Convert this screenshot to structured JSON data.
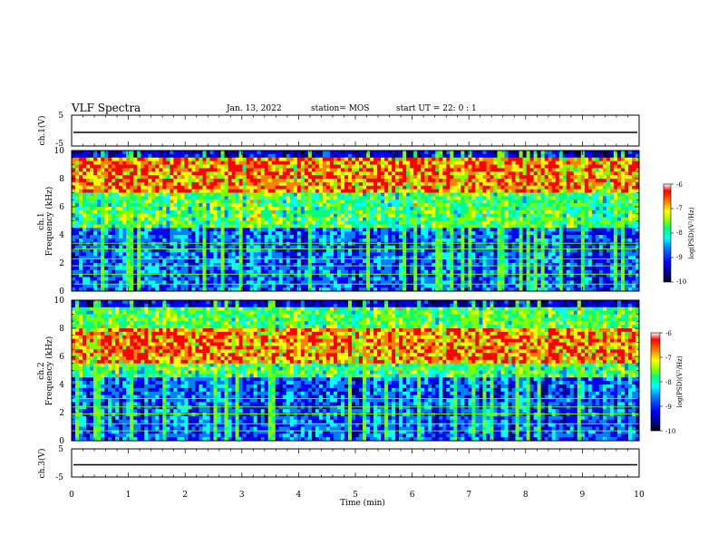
{
  "header": {
    "title": "VLF Spectra",
    "date": "Jan. 13, 2022",
    "station": "station= MOS",
    "start": "start UT =  22: 0  : 1"
  },
  "colors": {
    "scale": [
      "#000000",
      "#00007f",
      "#0000ff",
      "#0080ff",
      "#00ffff",
      "#00ff7f",
      "#7fff00",
      "#ffff00",
      "#ff8000",
      "#ff0000",
      "#ffffff"
    ]
  },
  "chart_data": [
    {
      "type": "line",
      "name": "ch1-waveform",
      "ylabel": "ch.1(V)",
      "ylim": [
        -5,
        5
      ],
      "yticks": [
        "5",
        "-5"
      ],
      "x": [
        0,
        10
      ],
      "values": [
        0,
        0
      ]
    },
    {
      "type": "heatmap",
      "name": "ch1-spectrogram",
      "ylabel_top": "ch.1",
      "ylabel": "Frequency (kHz)",
      "ylim": [
        0,
        10
      ],
      "yticks": [
        "0",
        "2",
        "4",
        "6",
        "8",
        "10"
      ],
      "xlim": [
        0,
        10
      ],
      "colorbar": {
        "label": "log(PSD)(V²/Hz)",
        "ticks": [
          "-6",
          "-7",
          "-8",
          "-9",
          "-10"
        ],
        "range": [
          -10,
          -6
        ]
      },
      "peak_band_khz": [
        7.0,
        9.5
      ],
      "horizontal_lines_khz": [
        0.5,
        1.2,
        1.8,
        2.3,
        3.0,
        3.4
      ]
    },
    {
      "type": "heatmap",
      "name": "ch2-spectrogram",
      "ylabel_top": "ch.2",
      "ylabel": "Frequency (kHz)",
      "ylim": [
        0,
        10
      ],
      "yticks": [
        "0",
        "2",
        "4",
        "6",
        "8",
        "10"
      ],
      "xlim": [
        0,
        10
      ],
      "colorbar": {
        "label": "log(PSD)(V²/Hz)",
        "ticks": [
          "-6",
          "-7",
          "-8",
          "-9",
          "-10"
        ],
        "range": [
          -10,
          -6
        ]
      },
      "peak_band_khz": [
        5.5,
        8.0
      ],
      "horizontal_lines_khz": [
        0.7,
        1.2,
        1.9,
        2.4,
        3.0
      ]
    },
    {
      "type": "line",
      "name": "ch3-waveform",
      "ylabel": "ch.3(V)",
      "ylim": [
        -5,
        5
      ],
      "yticks": [
        "5",
        "-5"
      ],
      "x": [
        0,
        10
      ],
      "values": [
        0,
        0
      ]
    }
  ],
  "xaxis": {
    "label": "Time (min)",
    "ticks": [
      "0",
      "1",
      "2",
      "3",
      "4",
      "5",
      "6",
      "7",
      "8",
      "9",
      "10"
    ],
    "xlim": [
      0,
      10
    ]
  }
}
